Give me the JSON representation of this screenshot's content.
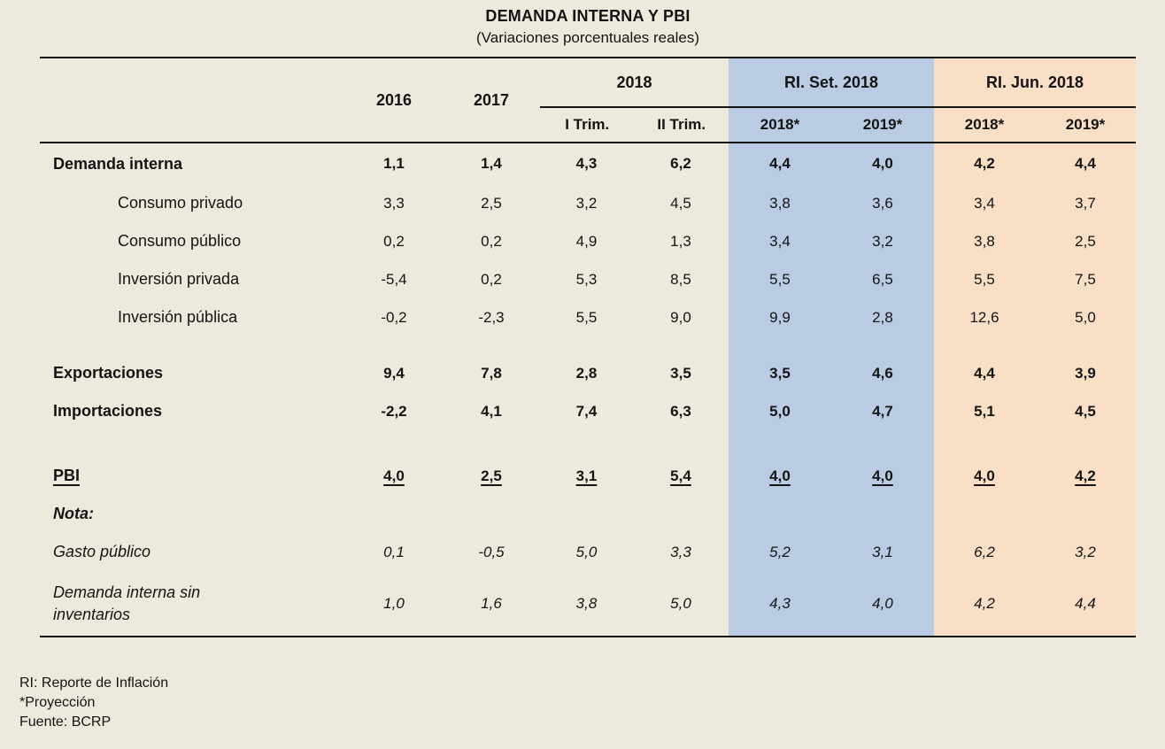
{
  "colors": {
    "background": "#EDEADD",
    "band_blue": "#B9CCE4",
    "band_orange": "#F8DFC6",
    "text": "#141414"
  },
  "footnotes": [
    "RI: Reporte de Inflación",
    "*Proyección",
    "Fuente: BCRP"
  ],
  "chart_data": {
    "type": "table",
    "title": "DEMANDA INTERNA Y PBI",
    "subtitle": "(Variaciones porcentuales reales)",
    "decimal_separator": ",",
    "columns": [
      {
        "group": "",
        "label": "2016"
      },
      {
        "group": "",
        "label": "2017"
      },
      {
        "group": "2018",
        "label": "I Trim."
      },
      {
        "group": "2018",
        "label": "II Trim."
      },
      {
        "group": "RI. Set. 2018",
        "label": "2018*"
      },
      {
        "group": "RI. Set. 2018",
        "label": "2019*"
      },
      {
        "group": "RI. Jun. 2018",
        "label": "2018*"
      },
      {
        "group": "RI. Jun. 2018",
        "label": "2019*"
      }
    ],
    "rows": [
      {
        "label": "Demanda interna",
        "style": "bold",
        "values": [
          1.1,
          1.4,
          4.3,
          6.2,
          4.4,
          4.0,
          4.2,
          4.4
        ]
      },
      {
        "label": "Consumo privado",
        "style": "indent",
        "values": [
          3.3,
          2.5,
          3.2,
          4.5,
          3.8,
          3.6,
          3.4,
          3.7
        ]
      },
      {
        "label": "Consumo público",
        "style": "indent",
        "values": [
          0.2,
          0.2,
          4.9,
          1.3,
          3.4,
          3.2,
          3.8,
          2.5
        ]
      },
      {
        "label": "Inversión privada",
        "style": "indent",
        "values": [
          -5.4,
          0.2,
          5.3,
          8.5,
          5.5,
          6.5,
          5.5,
          7.5
        ]
      },
      {
        "label": "Inversión pública",
        "style": "indent",
        "values": [
          -0.2,
          -2.3,
          5.5,
          9.0,
          9.9,
          2.8,
          12.6,
          5.0
        ]
      },
      {
        "label": "Exportaciones",
        "style": "bold",
        "space_before": 20,
        "values": [
          9.4,
          7.8,
          2.8,
          3.5,
          3.5,
          4.6,
          4.4,
          3.9
        ]
      },
      {
        "label": "Importaciones",
        "style": "bold",
        "values": [
          -2.2,
          4.1,
          7.4,
          6.3,
          5.0,
          4.7,
          5.1,
          4.5
        ]
      },
      {
        "label": "PBI",
        "style": "bold underline",
        "space_before": 30,
        "values": [
          4.0,
          2.5,
          3.1,
          5.4,
          4.0,
          4.0,
          4.0,
          4.2
        ]
      },
      {
        "label": "Nota:",
        "style": "note-header",
        "values": []
      },
      {
        "label": "Gasto público",
        "style": "italic",
        "values": [
          0.1,
          -0.5,
          5.0,
          3.3,
          5.2,
          3.1,
          6.2,
          3.2
        ]
      },
      {
        "label": "Demanda interna sin inventarios",
        "style": "italic tall",
        "values": [
          1.0,
          1.6,
          3.8,
          5.0,
          4.3,
          4.0,
          4.2,
          4.4
        ]
      }
    ]
  }
}
